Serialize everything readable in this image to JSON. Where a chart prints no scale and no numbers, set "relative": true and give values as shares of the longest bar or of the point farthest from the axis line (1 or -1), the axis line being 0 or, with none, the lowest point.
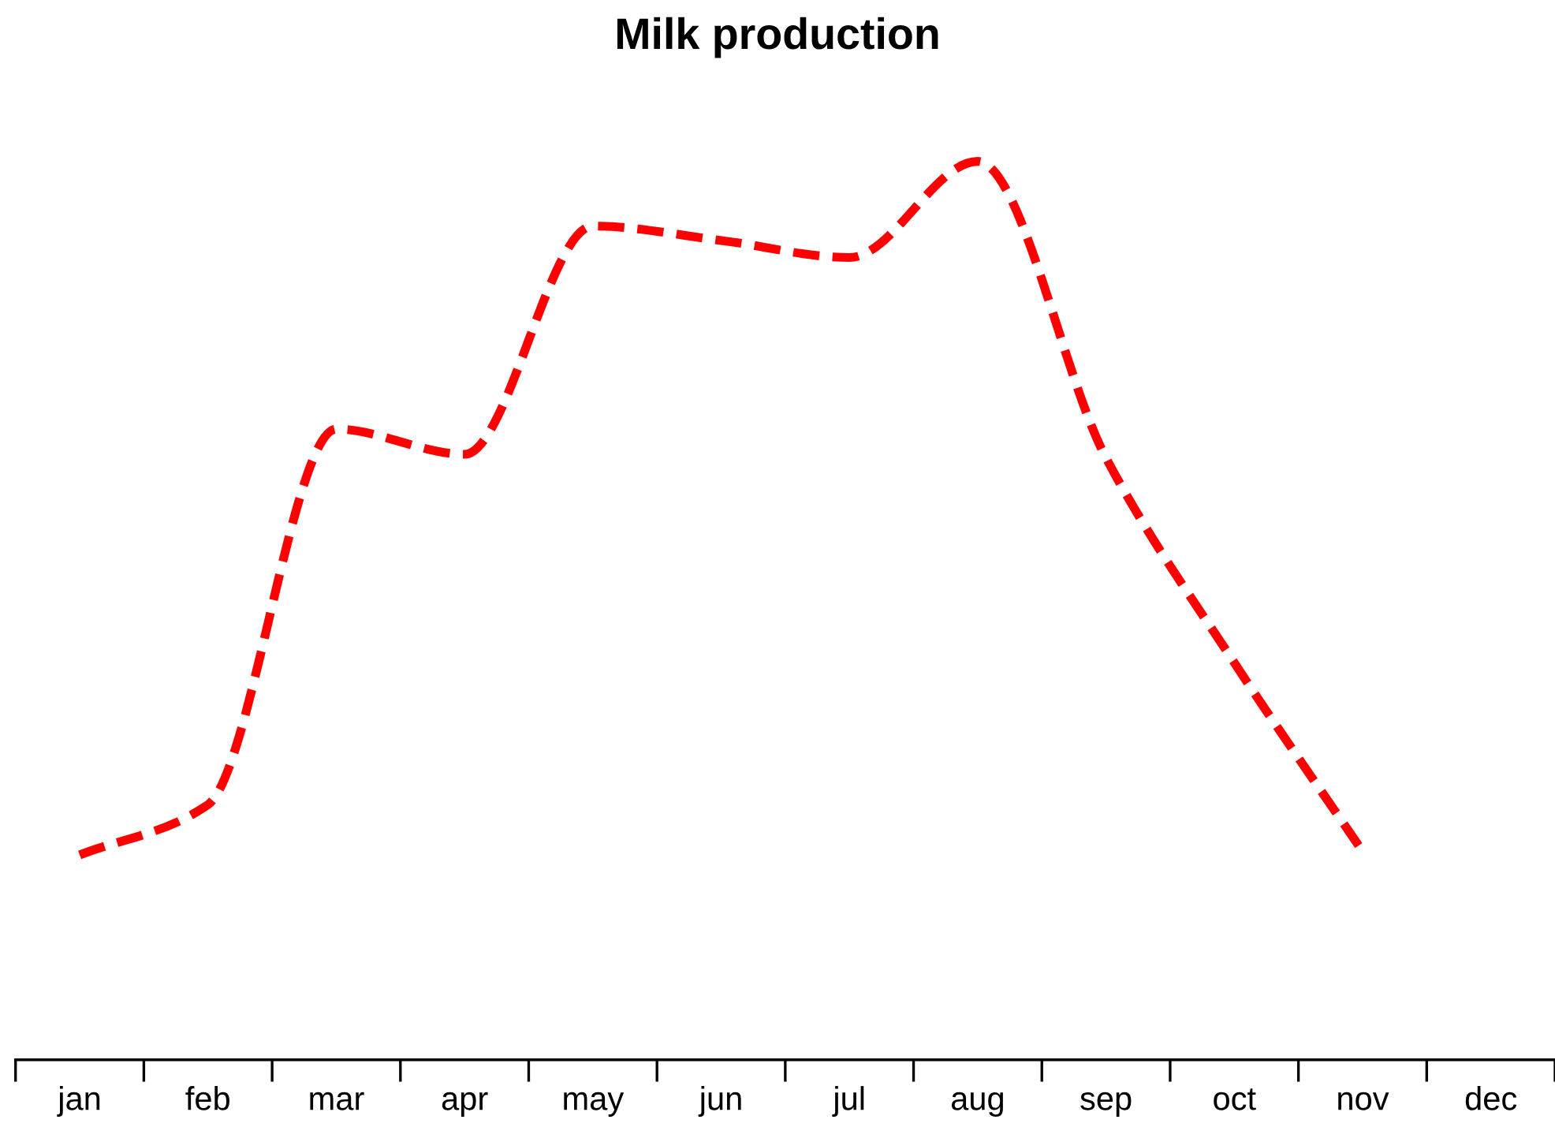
{
  "chart_data": {
    "type": "line",
    "title": "Milk production",
    "relative": true,
    "categories": [
      "jan",
      "feb",
      "mar",
      "apr",
      "may",
      "jun",
      "jul",
      "aug",
      "sep",
      "oct",
      "nov",
      "dec"
    ],
    "series": [
      {
        "color": "#ff0000",
        "values": [
          0.228,
          0.284,
          0.702,
          0.674,
          0.928,
          0.912,
          0.893,
          1.0,
          0.67,
          0.442,
          0.232,
          null
        ]
      }
    ],
    "line_style": "dashed",
    "marker": "none",
    "grid": false,
    "legend": false
  }
}
